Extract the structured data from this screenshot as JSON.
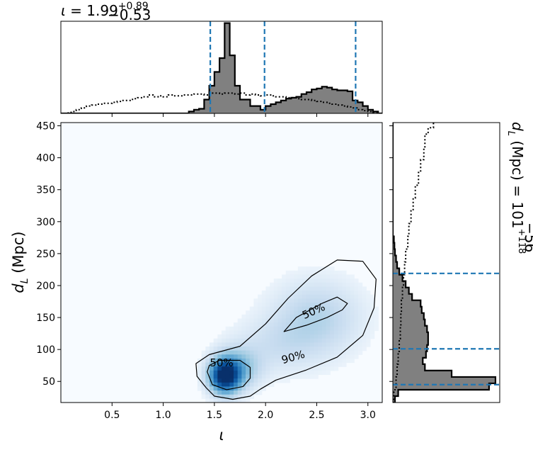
{
  "chart_data": [
    {
      "panel": "top-marginal",
      "type": "histogram",
      "title_symbol": "ι",
      "title_equals": " = ",
      "title_value": "1.99",
      "title_upper": "+0.89",
      "title_lower": "−0.53",
      "x_range": [
        0.0,
        3.14
      ],
      "dashed_lines_x": [
        1.46,
        1.99,
        2.88
      ],
      "dashed_color": "#1f77b4",
      "fill_color": "#808080",
      "steps": [
        [
          0.0,
          0.0
        ],
        [
          0.05,
          0.0
        ],
        [
          0.1,
          0.0
        ],
        [
          0.15,
          0.0
        ],
        [
          0.2,
          0.0
        ],
        [
          0.25,
          0.0
        ],
        [
          0.3,
          0.0
        ],
        [
          0.35,
          0.0
        ],
        [
          0.4,
          0.0
        ],
        [
          0.45,
          0.0
        ],
        [
          0.5,
          0.0
        ],
        [
          0.55,
          0.0
        ],
        [
          0.6,
          0.0
        ],
        [
          0.65,
          0.0
        ],
        [
          0.7,
          0.0
        ],
        [
          0.75,
          0.0
        ],
        [
          0.8,
          0.0
        ],
        [
          0.85,
          0.0
        ],
        [
          0.9,
          0.0
        ],
        [
          0.95,
          0.0
        ],
        [
          1.0,
          0.0
        ],
        [
          1.05,
          0.0
        ],
        [
          1.1,
          0.0
        ],
        [
          1.15,
          0.0
        ],
        [
          1.2,
          0.0
        ],
        [
          1.25,
          0.02
        ],
        [
          1.3,
          0.04
        ],
        [
          1.35,
          0.05
        ],
        [
          1.4,
          0.15
        ],
        [
          1.45,
          0.3
        ],
        [
          1.5,
          0.45
        ],
        [
          1.55,
          0.6
        ],
        [
          1.6,
          0.98
        ],
        [
          1.65,
          0.63
        ],
        [
          1.7,
          0.3
        ],
        [
          1.75,
          0.15
        ],
        [
          1.8,
          0.15
        ],
        [
          1.85,
          0.08
        ],
        [
          1.9,
          0.08
        ],
        [
          1.95,
          0.04
        ],
        [
          2.0,
          0.08
        ],
        [
          2.05,
          0.1
        ],
        [
          2.1,
          0.12
        ],
        [
          2.15,
          0.14
        ],
        [
          2.2,
          0.16
        ],
        [
          2.25,
          0.17
        ],
        [
          2.3,
          0.18
        ],
        [
          2.35,
          0.21
        ],
        [
          2.4,
          0.23
        ],
        [
          2.45,
          0.26
        ],
        [
          2.5,
          0.27
        ],
        [
          2.55,
          0.29
        ],
        [
          2.6,
          0.28
        ],
        [
          2.65,
          0.26
        ],
        [
          2.7,
          0.25
        ],
        [
          2.75,
          0.25
        ],
        [
          2.8,
          0.24
        ],
        [
          2.85,
          0.14
        ],
        [
          2.9,
          0.12
        ],
        [
          2.95,
          0.08
        ],
        [
          3.0,
          0.04
        ],
        [
          3.05,
          0.02
        ],
        [
          3.1,
          0.0
        ]
      ],
      "prior_steps": [
        [
          0.0,
          0.0
        ],
        [
          0.05,
          0.005
        ],
        [
          0.1,
          0.02
        ],
        [
          0.15,
          0.04
        ],
        [
          0.2,
          0.06
        ],
        [
          0.25,
          0.08
        ],
        [
          0.3,
          0.09
        ],
        [
          0.35,
          0.1
        ],
        [
          0.4,
          0.11
        ],
        [
          0.45,
          0.11
        ],
        [
          0.5,
          0.12
        ],
        [
          0.55,
          0.13
        ],
        [
          0.6,
          0.14
        ],
        [
          0.65,
          0.14
        ],
        [
          0.7,
          0.16
        ],
        [
          0.75,
          0.17
        ],
        [
          0.8,
          0.18
        ],
        [
          0.85,
          0.2
        ],
        [
          0.9,
          0.18
        ],
        [
          0.95,
          0.19
        ],
        [
          1.0,
          0.18
        ],
        [
          1.05,
          0.2
        ],
        [
          1.1,
          0.19
        ],
        [
          1.15,
          0.19
        ],
        [
          1.2,
          0.2
        ],
        [
          1.25,
          0.2
        ],
        [
          1.3,
          0.21
        ],
        [
          1.35,
          0.21
        ],
        [
          1.4,
          0.2
        ],
        [
          1.45,
          0.22
        ],
        [
          1.5,
          0.22
        ],
        [
          1.55,
          0.21
        ],
        [
          1.6,
          0.22
        ],
        [
          1.65,
          0.22
        ],
        [
          1.7,
          0.21
        ],
        [
          1.75,
          0.22
        ],
        [
          1.8,
          0.2
        ],
        [
          1.85,
          0.21
        ],
        [
          1.9,
          0.2
        ],
        [
          1.95,
          0.19
        ],
        [
          2.0,
          0.2
        ],
        [
          2.05,
          0.19
        ],
        [
          2.1,
          0.18
        ],
        [
          2.15,
          0.18
        ],
        [
          2.2,
          0.17
        ],
        [
          2.25,
          0.17
        ],
        [
          2.3,
          0.16
        ],
        [
          2.35,
          0.15
        ],
        [
          2.4,
          0.15
        ],
        [
          2.45,
          0.14
        ],
        [
          2.5,
          0.13
        ],
        [
          2.55,
          0.12
        ],
        [
          2.6,
          0.11
        ],
        [
          2.65,
          0.1
        ],
        [
          2.7,
          0.09
        ],
        [
          2.75,
          0.08
        ],
        [
          2.8,
          0.07
        ],
        [
          2.85,
          0.06
        ],
        [
          2.9,
          0.04
        ],
        [
          2.95,
          0.03
        ],
        [
          3.0,
          0.02
        ],
        [
          3.05,
          0.01
        ],
        [
          3.1,
          0.0
        ]
      ]
    },
    {
      "panel": "main-density",
      "type": "heatmap",
      "xlabel": "ι",
      "ylabel_symbol": "d",
      "ylabel_sub": "L",
      "ylabel_unit": " (Mpc)",
      "xlim": [
        0.0,
        3.14
      ],
      "ylim": [
        17,
        455
      ],
      "x_ticks": [
        {
          "v": 0.5,
          "label": "0.5"
        },
        {
          "v": 1.0,
          "label": "1.0"
        },
        {
          "v": 1.5,
          "label": "1.5"
        },
        {
          "v": 2.0,
          "label": "2.0"
        },
        {
          "v": 2.5,
          "label": "2.5"
        },
        {
          "v": 3.0,
          "label": "3.0"
        }
      ],
      "y_ticks": [
        {
          "v": 50,
          "label": "50"
        },
        {
          "v": 100,
          "label": "100"
        },
        {
          "v": 150,
          "label": "150"
        },
        {
          "v": 200,
          "label": "200"
        },
        {
          "v": 250,
          "label": "250"
        },
        {
          "v": 300,
          "label": "300"
        },
        {
          "v": 350,
          "label": "350"
        },
        {
          "v": 400,
          "label": "400"
        },
        {
          "v": 450,
          "label": "450"
        }
      ],
      "density_peaks": [
        {
          "x": 1.6,
          "y": 58,
          "sx": 0.1,
          "sy": 18,
          "w": 1.0
        },
        {
          "x": 1.72,
          "y": 70,
          "sx": 0.15,
          "sy": 22,
          "w": 0.35
        },
        {
          "x": 2.5,
          "y": 150,
          "sx": 0.3,
          "sy": 40,
          "w": 0.22
        },
        {
          "x": 2.1,
          "y": 105,
          "sx": 0.3,
          "sy": 30,
          "w": 0.12
        }
      ],
      "contours": [
        {
          "level": "90%",
          "label_pos": {
            "x": 2.27,
            "y": 88
          },
          "label_angle": -16,
          "points": [
            [
              1.42,
              40
            ],
            [
              1.5,
              27
            ],
            [
              1.68,
              22
            ],
            [
              1.85,
              27
            ],
            [
              1.95,
              38
            ],
            [
              2.1,
              52
            ],
            [
              2.4,
              68
            ],
            [
              2.7,
              88
            ],
            [
              2.95,
              122
            ],
            [
              3.06,
              165
            ],
            [
              3.08,
              210
            ],
            [
              2.95,
              238
            ],
            [
              2.7,
              240
            ],
            [
              2.45,
              215
            ],
            [
              2.22,
              180
            ],
            [
              2.0,
              140
            ],
            [
              1.75,
              105
            ],
            [
              1.45,
              92
            ],
            [
              1.32,
              78
            ],
            [
              1.33,
              58
            ],
            [
              1.42,
              40
            ]
          ]
        },
        {
          "level": "50%",
          "label_pos": {
            "x": 1.57,
            "y": 79
          },
          "label_angle": 0,
          "points": [
            [
              1.43,
              65
            ],
            [
              1.48,
              45
            ],
            [
              1.62,
              37
            ],
            [
              1.78,
              42
            ],
            [
              1.85,
              55
            ],
            [
              1.85,
              72
            ],
            [
              1.75,
              83
            ],
            [
              1.55,
              83
            ],
            [
              1.45,
              75
            ],
            [
              1.43,
              65
            ]
          ]
        },
        {
          "level": "50%",
          "label_pos": {
            "x": 2.47,
            "y": 160
          },
          "label_angle": -24,
          "points": [
            [
              2.18,
              128
            ],
            [
              2.4,
              138
            ],
            [
              2.6,
              150
            ],
            [
              2.75,
              162
            ],
            [
              2.8,
              172
            ],
            [
              2.7,
              182
            ],
            [
              2.55,
              172
            ],
            [
              2.3,
              150
            ],
            [
              2.18,
              128
            ]
          ]
        }
      ]
    },
    {
      "panel": "right-marginal",
      "type": "histogram",
      "orientation": "horizontal",
      "title_symbol": "d",
      "title_sub": "L",
      "title_unit": " (Mpc) = ",
      "title_value": "101",
      "title_upper": "+118",
      "title_lower": "−56",
      "y_range": [
        17,
        455
      ],
      "dashed_lines_y": [
        45,
        101,
        219
      ],
      "dashed_color": "#1f77b4",
      "fill_color": "#808080",
      "steps": [
        [
          17,
          0.02
        ],
        [
          27,
          0.05
        ],
        [
          37,
          0.9
        ],
        [
          47,
          0.96
        ],
        [
          57,
          0.55
        ],
        [
          67,
          0.3
        ],
        [
          77,
          0.28
        ],
        [
          87,
          0.31
        ],
        [
          97,
          0.32
        ],
        [
          107,
          0.33
        ],
        [
          117,
          0.33
        ],
        [
          127,
          0.32
        ],
        [
          137,
          0.3
        ],
        [
          147,
          0.29
        ],
        [
          157,
          0.27
        ],
        [
          167,
          0.26
        ],
        [
          177,
          0.18
        ],
        [
          187,
          0.15
        ],
        [
          197,
          0.12
        ],
        [
          207,
          0.09
        ],
        [
          217,
          0.06
        ],
        [
          227,
          0.04
        ],
        [
          237,
          0.03
        ],
        [
          247,
          0.02
        ],
        [
          257,
          0.015
        ],
        [
          267,
          0.01
        ],
        [
          277,
          0.0
        ],
        [
          455,
          0.0
        ]
      ],
      "prior_steps": [
        [
          17,
          0.01
        ],
        [
          37,
          0.03
        ],
        [
          57,
          0.04
        ],
        [
          77,
          0.05
        ],
        [
          97,
          0.06
        ],
        [
          117,
          0.07
        ],
        [
          137,
          0.075
        ],
        [
          157,
          0.08
        ],
        [
          177,
          0.09
        ],
        [
          197,
          0.1
        ],
        [
          217,
          0.11
        ],
        [
          237,
          0.12
        ],
        [
          257,
          0.14
        ],
        [
          277,
          0.15
        ],
        [
          297,
          0.17
        ],
        [
          317,
          0.19
        ],
        [
          337,
          0.21
        ],
        [
          357,
          0.24
        ],
        [
          377,
          0.26
        ],
        [
          397,
          0.29
        ],
        [
          417,
          0.3
        ],
        [
          437,
          0.33
        ],
        [
          447,
          0.38
        ],
        [
          455,
          0.38
        ]
      ]
    }
  ]
}
